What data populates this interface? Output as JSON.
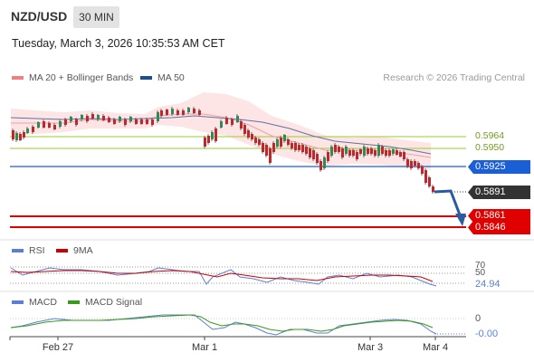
{
  "header": {
    "pair": "NZD/USD",
    "timeframe": "30 MIN",
    "datetime": "Tuesday, March 3, 2026 10:35:53 AM CET"
  },
  "legend": {
    "ma20_label": "MA 20 + Bollinger Bands",
    "ma20_color": "#f08080",
    "ma50_label": "MA 50",
    "ma50_color": "#1f4e8c",
    "research": "Research © 2026 Trading Central"
  },
  "levels": {
    "r1": "0.5964",
    "r2": "0.5950",
    "pivot": "0.5925",
    "current": "0.5891",
    "s1": "0.5861",
    "s2": "0.5846"
  },
  "rsi_panel": {
    "label": "RSI",
    "ma_label": "9MA",
    "rsi_color": "#5b7fd6",
    "ma_color": "#cc0000",
    "level_70": "70",
    "level_50": "50",
    "value": "24.94"
  },
  "macd_panel": {
    "label": "MACD",
    "signal_label": "MACD Signal",
    "macd_color": "#5b7fd6",
    "signal_color": "#3a9a1a",
    "zero": "0",
    "value": "-0.00"
  },
  "x_axis": [
    "Feb 27",
    "Mar 1",
    "Mar 3",
    "Mar 4"
  ],
  "colors": {
    "pivot": "#1a5fd6",
    "support": "#e00000",
    "resistance": "#9acd32",
    "up": "#2e8b57",
    "down": "#c0272d"
  }
}
